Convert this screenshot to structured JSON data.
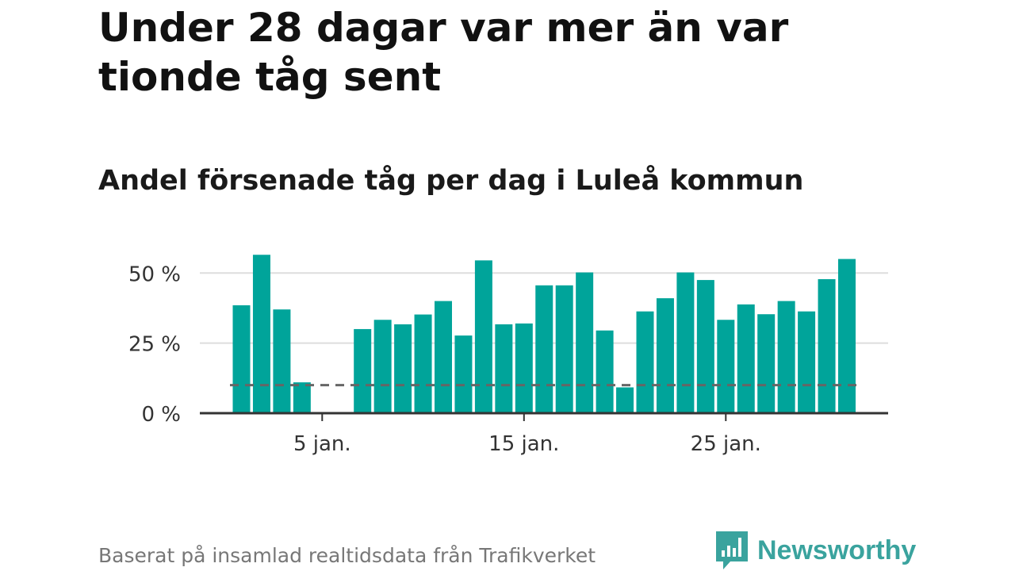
{
  "title": "Under 28 dagar var mer än var tionde tåg sent",
  "subtitle": "Andel försenade tåg per dag i Luleå kommun",
  "source": "Baserat på insamlad realtidsdata från Trafikverket",
  "brand": {
    "name": "Newsworthy",
    "color": "#3aa39e"
  },
  "colors": {
    "bar": "#00a49a",
    "reference": "#666666",
    "grid": "#dddddd",
    "axis": "#333333"
  },
  "chart_data": {
    "type": "bar",
    "x": [
      1,
      2,
      3,
      4,
      5,
      6,
      7,
      8,
      9,
      10,
      11,
      12,
      13,
      14,
      15,
      16,
      17,
      18,
      19,
      20,
      21,
      22,
      23,
      24,
      25,
      26,
      27,
      28,
      29,
      30,
      31
    ],
    "values": [
      38.5,
      56.5,
      37,
      11,
      0,
      0,
      30,
      33.3,
      31.7,
      35.2,
      40,
      27.7,
      54.5,
      31.7,
      32,
      45.6,
      45.6,
      50.2,
      29.5,
      9.2,
      36.3,
      41,
      50.2,
      47.5,
      33.3,
      38.8,
      35.3,
      40,
      36.3,
      47.8,
      55
    ],
    "reference_line": 10,
    "y_ticks": [
      {
        "value": 0,
        "label": "0 %"
      },
      {
        "value": 25,
        "label": "25 %"
      },
      {
        "value": 50,
        "label": "50 %"
      }
    ],
    "x_ticks": [
      {
        "value": 5,
        "label": "5 jan."
      },
      {
        "value": 15,
        "label": "15 jan."
      },
      {
        "value": 25,
        "label": "25 jan."
      }
    ],
    "ylim": [
      0,
      57
    ],
    "xlabel": "",
    "ylabel": "",
    "grid": true
  }
}
